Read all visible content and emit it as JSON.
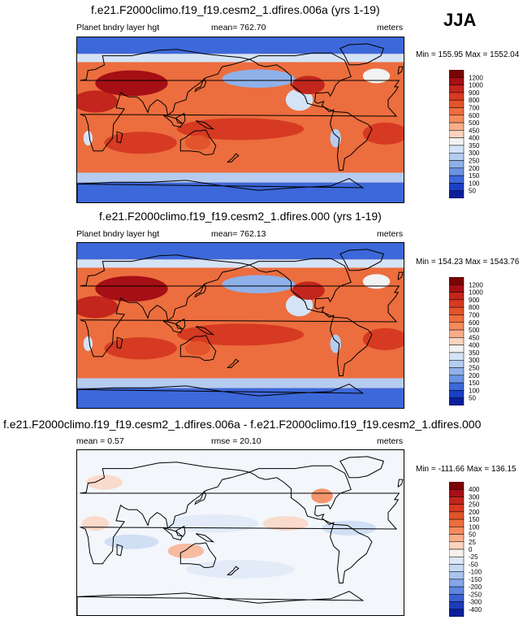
{
  "season": "JJA",
  "chart_data": [
    {
      "type": "heatmap",
      "title": "f.e21.F2000climo.f19_f19.cesm2_1.dfires.006a (yrs 1-19)",
      "left_label": "Planet bndry layer hgt",
      "center_label": "mean= 762.70",
      "right_label": "meters",
      "minmax_label": "Min = 155.95 Max = 1552.04",
      "mean": 762.7,
      "min": 155.95,
      "max": 1552.04,
      "units": "meters",
      "colorbar_levels": [
        "1200",
        "1000",
        "900",
        "800",
        "700",
        "600",
        "500",
        "450",
        "400",
        "350",
        "300",
        "250",
        "200",
        "150",
        "100",
        "50"
      ],
      "colorbar_colors": [
        "#7a0403",
        "#a50f15",
        "#c2261c",
        "#d63a22",
        "#e2542b",
        "#ec6d3e",
        "#f38b5c",
        "#f8ad8a",
        "#fbd3bf",
        "#f2f2f2",
        "#d5e3f6",
        "#b5ccf0",
        "#8fb1ea",
        "#6b93e3",
        "#3d68d9",
        "#1b3fc7",
        "#0a1f9a"
      ]
    },
    {
      "type": "heatmap",
      "title": "f.e21.F2000climo.f19_f19.cesm2_1.dfires.000 (yrs 1-19)",
      "left_label": "Planet bndry layer hgt",
      "center_label": "mean= 762.13",
      "right_label": "meters",
      "minmax_label": "Min = 154.23 Max = 1543.76",
      "mean": 762.13,
      "min": 154.23,
      "max": 1543.76,
      "units": "meters",
      "colorbar_levels": [
        "1200",
        "1000",
        "900",
        "800",
        "700",
        "600",
        "500",
        "450",
        "400",
        "350",
        "300",
        "250",
        "200",
        "150",
        "100",
        "50"
      ],
      "colorbar_colors": [
        "#7a0403",
        "#a50f15",
        "#c2261c",
        "#d63a22",
        "#e2542b",
        "#ec6d3e",
        "#f38b5c",
        "#f8ad8a",
        "#fbd3bf",
        "#f2f2f2",
        "#d5e3f6",
        "#b5ccf0",
        "#8fb1ea",
        "#6b93e3",
        "#3d68d9",
        "#1b3fc7",
        "#0a1f9a"
      ]
    },
    {
      "type": "heatmap",
      "title": "f.e21.F2000climo.f19_f19.cesm2_1.dfires.006a - f.e21.F2000climo.f19_f19.cesm2_1.dfires.000",
      "left_label": "mean =   0.57",
      "center_label": "rmse =  20.10",
      "right_label": "meters",
      "minmax_label": "Min = -111.66 Max = 136.15",
      "mean": 0.57,
      "rmse": 20.1,
      "min": -111.66,
      "max": 136.15,
      "units": "meters",
      "colorbar_levels": [
        "400",
        "300",
        "250",
        "200",
        "150",
        "100",
        "50",
        "25",
        "0",
        "-25",
        "-50",
        "-100",
        "-150",
        "-200",
        "-250",
        "-300",
        "-400"
      ],
      "colorbar_colors": [
        "#7a0403",
        "#a50f15",
        "#c2261c",
        "#d63a22",
        "#e2542b",
        "#ec6d3e",
        "#f38b5c",
        "#f8ad8a",
        "#fbd3bf",
        "#f7f0ea",
        "#dde8f6",
        "#c7d9f2",
        "#a9c3ee",
        "#86a6e6",
        "#5f86dd",
        "#3a60d2",
        "#1d3cb8",
        "#0a1f9a"
      ]
    }
  ]
}
